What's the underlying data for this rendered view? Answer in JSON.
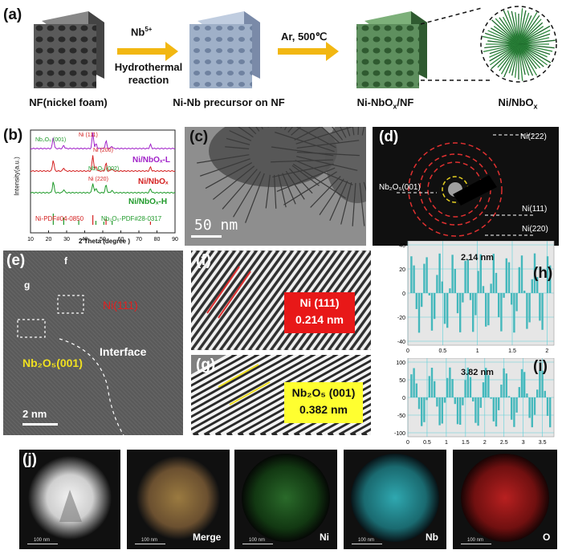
{
  "panel_a": {
    "label": "(a)",
    "step1_top": "Nb",
    "step1_sup": "5+",
    "step1_bottom": "Hydrothermal reaction",
    "step2_top": "Ar, 500℃",
    "cap_nf": "NF(nickel foam)",
    "cap_precursor": "Ni-Nb precursor on NF",
    "cap_nbo": "Ni-NbO",
    "cap_nbo_sub": "x",
    "cap_nbo_tail": "/NF",
    "cap_ni": "Ni/NbO",
    "cap_ni_sub": "x"
  },
  "panel_b": {
    "label": "(b)",
    "ylabel": "Intensity(a.u.)",
    "xlabel": "2 Theta (degree )",
    "ticks": [
      "10",
      "20",
      "30",
      "40",
      "50",
      "60",
      "70",
      "80",
      "90"
    ],
    "ann_nb001": "Nb₂O₅ (001)",
    "ann_ni111": "Ni (111)",
    "ann_ni200": "Ni (200)",
    "ann_nb002": "Nb₂O₅ (002)",
    "ann_ni220": "Ni (220)",
    "leg_L": "Ni/NbOₓ-L",
    "leg_mid": "Ni/NbOₓ",
    "leg_H": "Ni/NbOₓ-H",
    "ref_ni": "Ni-PDF#04-0850",
    "ref_nb": "Nb₂O₅-PDF#28-0317",
    "colors": {
      "L": "#a020c8",
      "mid": "#d42020",
      "H": "#1f9a2a"
    }
  },
  "panel_c": {
    "label": "(c)",
    "scale": "50 nm"
  },
  "panel_d": {
    "label": "(d)",
    "ring_nb": "Nb₂O₅(001)",
    "ring_222": "Ni(222)",
    "ring_111": "Ni(111)",
    "ring_220": "Ni(220)"
  },
  "panel_e": {
    "label": "(e)",
    "ni": "Ni(111)",
    "nb": "Nb₂O₅(001)",
    "interface": "Interface",
    "box_f": "f",
    "box_g": "g",
    "scale": "2 nm"
  },
  "panel_f": {
    "label": "(f)",
    "line1": "Ni (111)",
    "line2": "0.214 nm"
  },
  "panel_g": {
    "label": "(g)",
    "line1": "Nb₂O₅ (001)",
    "line2": "0.382 nm"
  },
  "panel_h": {
    "label": "(h)",
    "value": "2.14 nm",
    "yticks": [
      "40",
      "20",
      "0",
      "-20",
      "-40"
    ],
    "xticks": [
      "0",
      "0.5",
      "1",
      "1.5",
      "2"
    ]
  },
  "panel_i": {
    "label": "(i)",
    "value": "3.82 nm",
    "yticks": [
      "100",
      "50",
      "0",
      "-50",
      "-100"
    ],
    "xticks": [
      "0",
      "0.5",
      "1",
      "1.5",
      "2",
      "2.5",
      "3",
      "3.5"
    ]
  },
  "panel_j": {
    "label": "(j)",
    "scale": "100 nm",
    "merge": "Merge",
    "ni": "Ni",
    "nb": "Nb",
    "o": "O"
  }
}
